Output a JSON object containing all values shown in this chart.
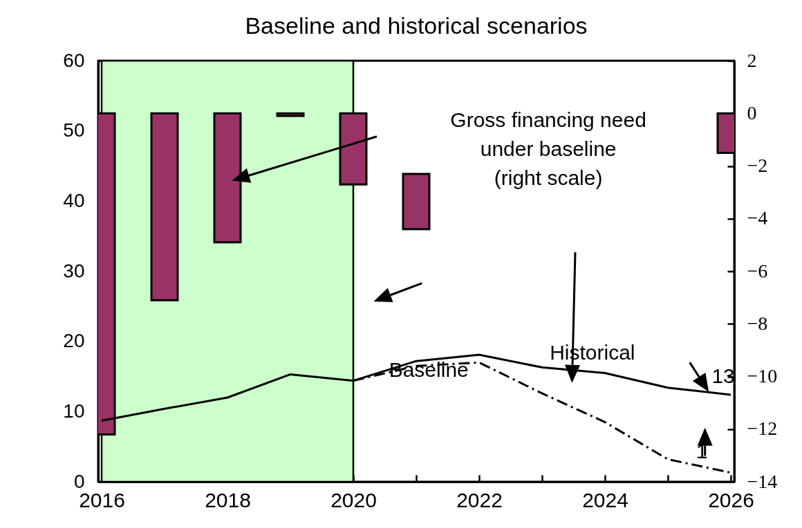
{
  "chart_data": {
    "type": "line",
    "title": "Baseline and historical scenarios",
    "x": [
      2016,
      2017,
      2018,
      2019,
      2020,
      2021,
      2022,
      2023,
      2024,
      2025,
      2026
    ],
    "series": [
      {
        "type": "bar",
        "axis": "y2",
        "color": "#993366",
        "values": [
          -12.2,
          -7.1,
          -4.9,
          -0.1,
          -2.7,
          -2.1,
          null,
          null,
          null,
          null,
          -1.5
        ],
        "base": [
          0,
          0,
          0,
          0,
          0,
          -2.3,
          null,
          null,
          null,
          null,
          0
        ]
      },
      {
        "color": "#000000",
        "line_style": "solid",
        "values": [
          8.7,
          10.4,
          12.0,
          15.3,
          14.4,
          17.2,
          18.1,
          16.3,
          15.5,
          13.4,
          12.4
        ]
      },
      {
        "color": "#000000",
        "line_style": "dashed",
        "values": [
          null,
          null,
          null,
          null,
          14.4,
          16.5,
          17.0,
          12.6,
          8.5,
          3.2,
          1.3
        ]
      }
    ],
    "xlim": [
      2016,
      2026
    ],
    "xticks": [
      2016,
      {
        "value": 2017,
        "label": null
      },
      2018,
      {
        "value": 2019,
        "label": null
      },
      2020,
      {
        "value": 2021,
        "label": null
      },
      2022,
      {
        "value": 2023,
        "label": null
      },
      2024,
      {
        "value": 2025,
        "label": null
      },
      2026
    ],
    "ylim": [
      0,
      60
    ],
    "yticks": [
      0,
      10,
      20,
      30,
      40,
      50,
      60
    ],
    "y2lim": [
      -14,
      2
    ],
    "y2ticks": [
      -14,
      -12,
      -10,
      -8,
      -6,
      -4,
      -2,
      0,
      2
    ],
    "bands": [
      {
        "axis": "x",
        "from": 2016,
        "to": 2020,
        "color": "#ccffcc"
      }
    ],
    "annotations": [
      "Gross financing need\nunder baseline\n(right scale)",
      "Baseline",
      "Historical",
      "13",
      "1"
    ],
    "grid": false
  }
}
